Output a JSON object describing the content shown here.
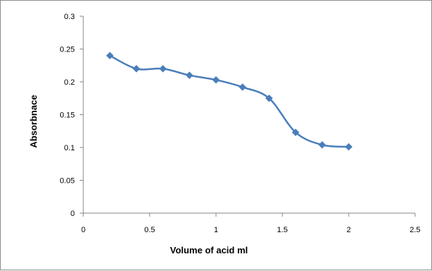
{
  "chart_data": {
    "type": "line",
    "title": "",
    "xlabel": "Volume of acid ml",
    "ylabel": "Absorbnace",
    "xlim": [
      0,
      2.5
    ],
    "ylim": [
      0,
      0.3
    ],
    "x_ticks": [
      0,
      0.5,
      1,
      1.5,
      2,
      2.5
    ],
    "x_tick_labels": [
      "0",
      "0.5",
      "1",
      "1.5",
      "2",
      "2.5"
    ],
    "y_ticks": [
      0,
      0.05,
      0.1,
      0.15,
      0.2,
      0.25,
      0.3
    ],
    "y_tick_labels": [
      "0",
      "0.05",
      "0.1",
      "0.15",
      "0.2",
      "0.25",
      "0.3"
    ],
    "grid": false,
    "legend": "none",
    "smooth": true,
    "marker": "diamond",
    "series": [
      {
        "color": "#4a7ebb",
        "x": [
          0.2,
          0.4,
          0.6,
          0.8,
          1.0,
          1.2,
          1.4,
          1.6,
          1.8,
          2.0
        ],
        "y": [
          0.24,
          0.22,
          0.22,
          0.21,
          0.203,
          0.192,
          0.175,
          0.123,
          0.104,
          0.101
        ]
      }
    ]
  }
}
